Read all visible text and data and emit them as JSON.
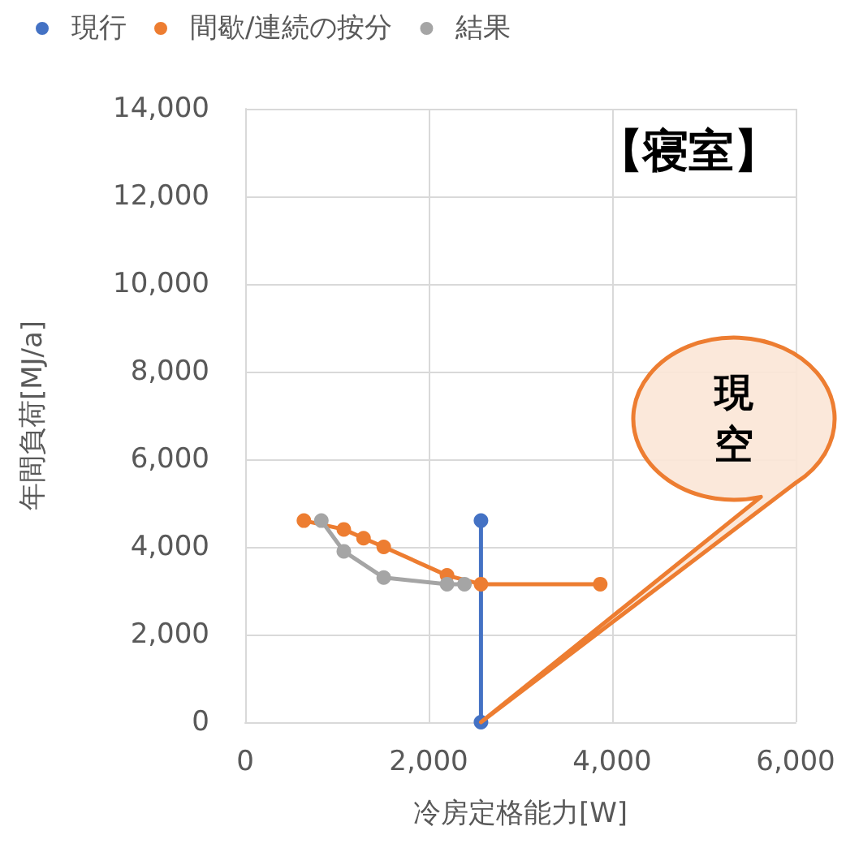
{
  "chart_data": {
    "type": "line",
    "title": "【寝室】",
    "xlabel": "冷房定格能力[W]",
    "ylabel": "年間負荷[MJ/a]",
    "annotations": [
      "現",
      "空"
    ],
    "series": [
      {
        "name": "現行",
        "color": "#4472c4",
        "x": [
          2570,
          2570
        ],
        "values": [
          4600,
          0
        ]
      },
      {
        "name": "間歇/連続の按分",
        "color": "#ed7d31",
        "x": [
          640,
          1075,
          1290,
          1510,
          2200,
          2570,
          3870
        ],
        "values": [
          4600,
          4400,
          4200,
          4000,
          3350,
          3150,
          3150
        ]
      },
      {
        "name": "結果",
        "color": "#a5a5a5",
        "x": [
          830,
          1075,
          1510,
          2200,
          2390
        ],
        "values": [
          4600,
          3900,
          3300,
          3150,
          3150
        ]
      }
    ],
    "xlim": [
      0,
      6000
    ],
    "xticks": [
      {
        "value": 0,
        "label": "0"
      },
      {
        "value": 2000,
        "label": "2,000"
      },
      {
        "value": 4000,
        "label": "4,000"
      },
      {
        "value": 6000,
        "label": "6,000"
      }
    ],
    "ylim": [
      0,
      14000
    ],
    "yticks": [
      {
        "value": 0,
        "label": "0"
      },
      {
        "value": 2000,
        "label": "2,000"
      },
      {
        "value": 4000,
        "label": "4,000"
      },
      {
        "value": 6000,
        "label": "6,000"
      },
      {
        "value": 8000,
        "label": "8,000"
      },
      {
        "value": 10000,
        "label": "10,000"
      },
      {
        "value": 12000,
        "label": "12,000"
      },
      {
        "value": 14000,
        "label": "14,000"
      }
    ],
    "grid": true,
    "legend": "top left",
    "marker": "circle",
    "line_style": "solid"
  }
}
